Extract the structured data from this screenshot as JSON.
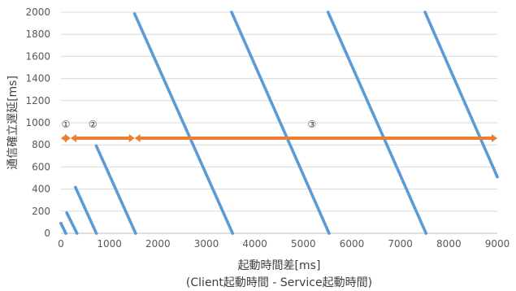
{
  "chart_data": {
    "type": "scatter",
    "title": "",
    "xlabel": "起動時間差[ms]",
    "xlabel_sub": "(Client起動時間 - Service起動時間)",
    "ylabel": "通信確立遅延[ms]",
    "xlim": [
      0,
      9000
    ],
    "ylim": [
      0,
      2000
    ],
    "x_ticks": [
      "0",
      "1000",
      "2000",
      "3000",
      "4000",
      "5000",
      "6000",
      "7000",
      "8000",
      "9000"
    ],
    "y_ticks": [
      "0",
      "200",
      "400",
      "600",
      "800",
      "1000",
      "1200",
      "1400",
      "1600",
      "1800",
      "2000"
    ],
    "grid": "horizontal",
    "series": [
      {
        "color": "#5B9BD5",
        "segments": [
          {
            "x": [
              0,
              100
            ],
            "y": [
              90,
              0
            ]
          },
          {
            "x": [
              120,
              330
            ],
            "y": [
              185,
              0
            ]
          },
          {
            "x": [
              300,
              730
            ],
            "y": [
              415,
              0
            ]
          },
          {
            "x": [
              730,
              1540
            ],
            "y": [
              790,
              0
            ]
          },
          {
            "x": [
              1520,
              3540
            ],
            "y": [
              1985,
              0
            ]
          },
          {
            "x": [
              3520,
              5530
            ],
            "y": [
              2000,
              0
            ]
          },
          {
            "x": [
              5510,
              7530
            ],
            "y": [
              2000,
              0
            ]
          },
          {
            "x": [
              7510,
              9000
            ],
            "y": [
              2000,
              510
            ]
          }
        ]
      }
    ],
    "ranges": [
      {
        "label": "①",
        "x": [
          0,
          200
        ],
        "y": 860,
        "color": "#ED7D31"
      },
      {
        "label": "②",
        "x": [
          200,
          1520
        ],
        "y": 860,
        "color": "#ED7D31"
      },
      {
        "label": "③",
        "x": [
          1520,
          9000
        ],
        "y": 860,
        "color": "#ED7D31"
      }
    ]
  }
}
